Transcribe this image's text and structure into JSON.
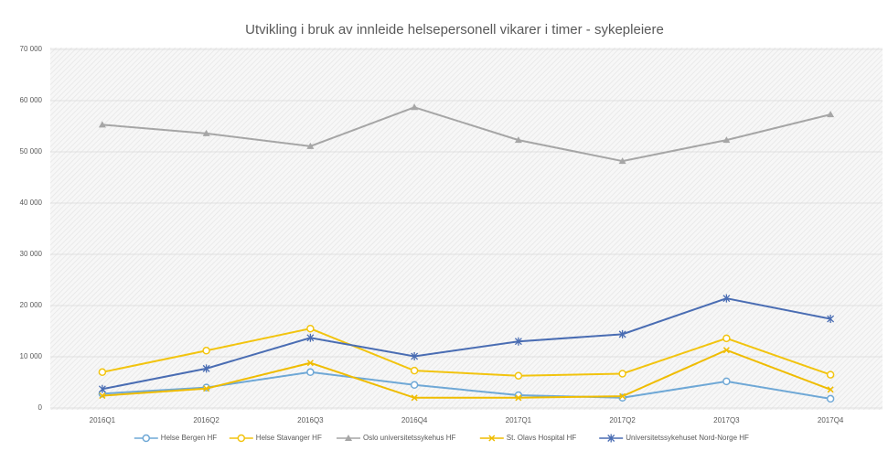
{
  "chart_data": {
    "type": "line",
    "title": "Utvikling i bruk av innleide helsepersonell vikarer  i timer - sykepleiere",
    "categories": [
      "2016Q1",
      "2016Q2",
      "2016Q3",
      "2016Q4",
      "2017Q1",
      "2017Q2",
      "2017Q3",
      "2017Q4"
    ],
    "series": [
      {
        "name": "Helse Bergen HF",
        "color": "#6fa8d6",
        "marker": "circle",
        "values": [
          2800,
          4000,
          7000,
          4500,
          2500,
          2000,
          5200,
          1800
        ]
      },
      {
        "name": "Helse Stavanger HF",
        "color": "#f2c40f",
        "marker": "circle",
        "values": [
          7000,
          11200,
          15500,
          7300,
          6300,
          6700,
          13600,
          6500
        ]
      },
      {
        "name": "Oslo universitetssykehus HF",
        "color": "#a6a6a6",
        "marker": "triangle",
        "values": [
          55300,
          53600,
          51100,
          58700,
          52300,
          48200,
          52300,
          57300
        ]
      },
      {
        "name": "St. Olavs Hospital HF",
        "color": "#efbc00",
        "marker": "x",
        "values": [
          2400,
          3800,
          8800,
          2000,
          2000,
          2300,
          11300,
          3600
        ]
      },
      {
        "name": "Universitetssykehuset Nord-Norge HF",
        "color": "#4a6db3",
        "marker": "star",
        "values": [
          3700,
          7700,
          13700,
          10100,
          13000,
          14400,
          21400,
          17400
        ]
      }
    ],
    "ylim": [
      0,
      70000
    ],
    "yticks": [
      0,
      {
        "value": 10000,
        "label": "10 000"
      },
      {
        "value": 20000,
        "label": "20 000"
      },
      {
        "value": 30000,
        "label": "30 000"
      },
      {
        "value": 40000,
        "label": "40 000"
      },
      {
        "value": 50000,
        "label": "50 000"
      },
      {
        "value": 60000,
        "label": "60 000"
      },
      {
        "value": 70000,
        "label": "70 000"
      }
    ],
    "grid": true,
    "legend": "bottom"
  }
}
